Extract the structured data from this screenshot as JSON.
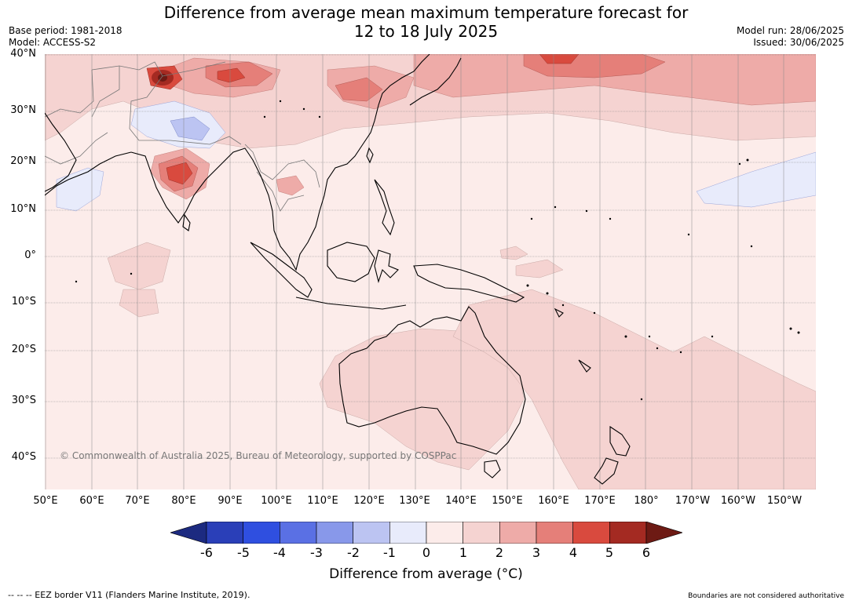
{
  "title_line1": "Difference from average mean maximum temperature forecast for",
  "title_line2": "12 to 18 July 2025",
  "base_period": "Base period: 1981-2018",
  "model": "Model: ACCESS-S2",
  "model_run": "Model run: 28/06/2025",
  "issued": "Issued: 30/06/2025",
  "lat_labels": [
    "40°N",
    "30°N",
    "20°N",
    "10°N",
    "0°",
    "10°S",
    "20°S",
    "30°S",
    "40°S"
  ],
  "lon_labels": [
    "50°E",
    "60°E",
    "70°E",
    "80°E",
    "90°E",
    "100°E",
    "110°E",
    "120°E",
    "130°E",
    "140°E",
    "150°E",
    "160°E",
    "170°E",
    "180°",
    "170°W",
    "160°W",
    "150°W"
  ],
  "copyright": "© Commonwealth of Australia 2025, Bureau of Meteorology, supported by COSPPac",
  "colorbar": {
    "labels": [
      "-6",
      "-5",
      "-4",
      "-3",
      "-2",
      "-1",
      "0",
      "1",
      "2",
      "3",
      "4",
      "5",
      "6"
    ],
    "colors": [
      "#1c2a80",
      "#2a3fb8",
      "#2f4fe0",
      "#5a70e4",
      "#8898ea",
      "#bcc4f2",
      "#e8ebfb",
      "#fcecea",
      "#f5d3d1",
      "#eeaba8",
      "#e57f79",
      "#d94a3e",
      "#a42a22",
      "#6d1a14"
    ],
    "title": "Difference from average (°C)"
  },
  "footer_left": "-- -- -- EEZ border V11 (Flanders Marine Institute, 2019).",
  "footer_right": "Boundaries are not considered authoritative",
  "colors": {
    "base_positive_0_1": "#fcecea",
    "positive_1_2": "#f5d3d1",
    "positive_2_3": "#eeaba8",
    "positive_3_4": "#e57f79",
    "positive_4_5": "#d94a3e",
    "positive_5_6": "#a42a22",
    "negative_0_1": "#e8ebfb",
    "negative_1_2": "#bcc4f2"
  }
}
